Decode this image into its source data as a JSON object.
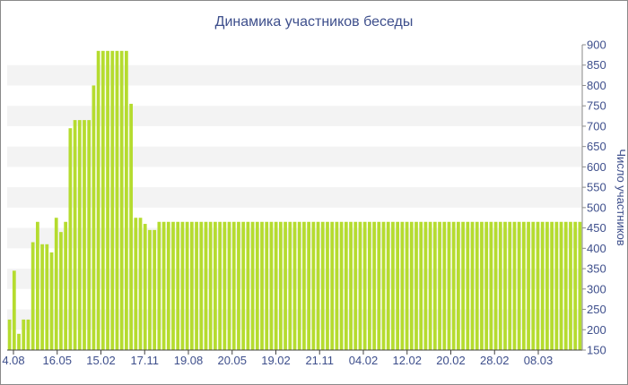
{
  "chart_data": {
    "type": "bar",
    "title": "Динамика участников беседы",
    "xlabel": "",
    "ylabel": "Число участников",
    "ylim": [
      150,
      900
    ],
    "y_ticks": [
      150,
      200,
      250,
      300,
      350,
      400,
      450,
      500,
      550,
      600,
      650,
      700,
      750,
      800,
      850,
      900
    ],
    "x_tick_labels": [
      "4.08",
      "16.05",
      "15.02",
      "17.11",
      "19.08",
      "20.05",
      "19.02",
      "21.11",
      "04.02",
      "12.02",
      "20.02",
      "28.02",
      "08.03"
    ],
    "bar_color": "#b5dc2f",
    "grid": "alternating horizontal bands",
    "axis_position": "right",
    "values": [
      225,
      345,
      190,
      225,
      225,
      415,
      465,
      410,
      410,
      390,
      475,
      440,
      465,
      695,
      715,
      715,
      715,
      715,
      800,
      885,
      885,
      885,
      885,
      885,
      885,
      885,
      755,
      475,
      475,
      460,
      445,
      445,
      465,
      465,
      465,
      465,
      465,
      465,
      465,
      465,
      465,
      465,
      465,
      465,
      465,
      465,
      465,
      465,
      465,
      465,
      465,
      465,
      465,
      465,
      465,
      465,
      465,
      465,
      465,
      465,
      465,
      465,
      465,
      465,
      465,
      465,
      465,
      465,
      465,
      465,
      465,
      465,
      465,
      465,
      465,
      465,
      465,
      465,
      465,
      465,
      465,
      465,
      465,
      465,
      465,
      465,
      465,
      465,
      465,
      465,
      465,
      465,
      465,
      465,
      465,
      465,
      465,
      465,
      465,
      465,
      465,
      465,
      465,
      465,
      465,
      465,
      465,
      465,
      465,
      465,
      465,
      465,
      465,
      465,
      465,
      465,
      465,
      465,
      465,
      465,
      465,
      465,
      465
    ]
  }
}
